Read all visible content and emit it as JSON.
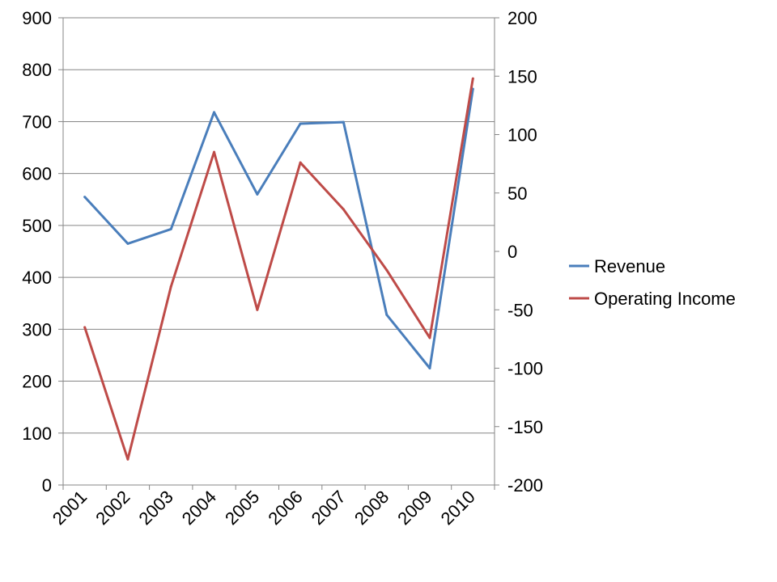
{
  "chart_data": {
    "type": "line",
    "title": "",
    "xlabel": "",
    "ylabel": "",
    "y2label": "",
    "categories": [
      "2001",
      "2002",
      "2003",
      "2004",
      "2005",
      "2006",
      "2007",
      "2008",
      "2009",
      "2010"
    ],
    "ylim": [
      0,
      900
    ],
    "y2lim": [
      -200,
      200
    ],
    "yticks": [
      "0",
      "100",
      "200",
      "300",
      "400",
      "500",
      "600",
      "700",
      "800",
      "900"
    ],
    "y2ticks": [
      "-200",
      "-150",
      "-100",
      "-50",
      "0",
      "50",
      "100",
      "150",
      "200"
    ],
    "grid": true,
    "legend_position": "right",
    "series": [
      {
        "name": "Revenue",
        "axis": "left",
        "color": "#4A7EBB",
        "values": [
          555,
          465,
          493,
          718,
          560,
          696,
          699,
          328,
          225,
          763
        ]
      },
      {
        "name": "Operating Income",
        "axis": "right",
        "color": "#BE4B48",
        "values": [
          -65,
          -178,
          -30,
          85,
          -50,
          76,
          36,
          -16,
          -74,
          148
        ]
      }
    ]
  }
}
